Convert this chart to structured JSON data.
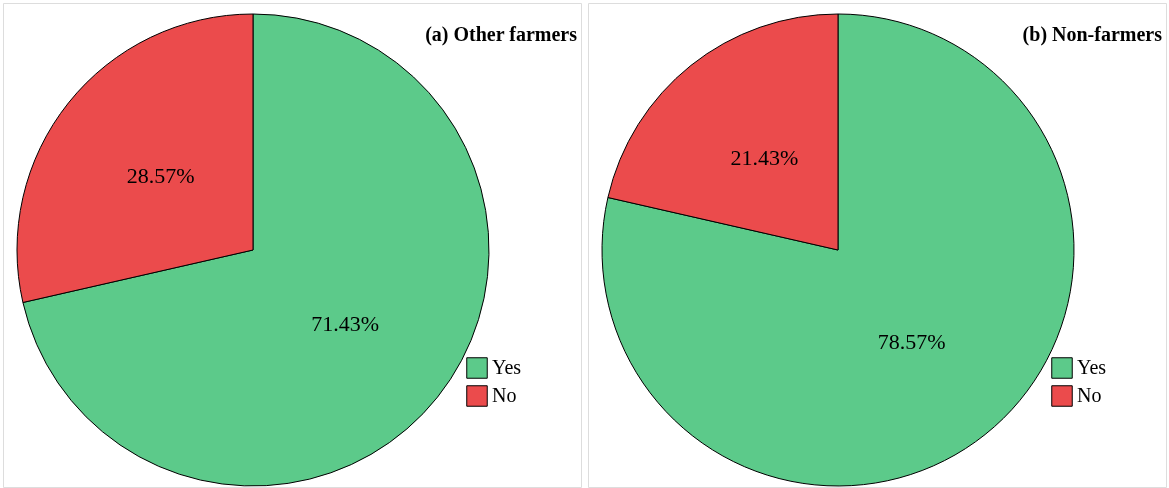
{
  "chart_data": [
    {
      "type": "pie",
      "title": "(a) Other farmers",
      "categories": [
        "Yes",
        "No"
      ],
      "values": [
        71.43,
        28.57
      ],
      "colors": [
        "#5cca8a",
        "#eb4b4c"
      ],
      "value_labels": [
        "71.43%",
        "28.57%"
      ],
      "legend": "bottom right"
    },
    {
      "type": "pie",
      "title": "(b) Non-farmers",
      "categories": [
        "Yes",
        "No"
      ],
      "values": [
        78.57,
        21.43
      ],
      "colors": [
        "#5cca8a",
        "#eb4b4c"
      ],
      "value_labels": [
        "78.57%",
        "21.43%"
      ],
      "legend": "bottom right"
    }
  ]
}
